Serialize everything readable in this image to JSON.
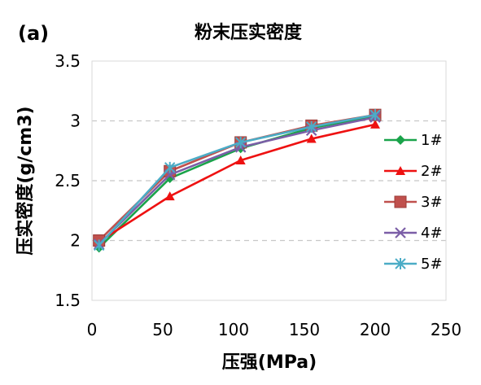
{
  "panel_label": "(a)",
  "chart_data": {
    "type": "line",
    "title": "粉末压实密度",
    "xlabel": "压强(MPa)",
    "ylabel": "压实密度(g/cm3)",
    "xlim": [
      0,
      250
    ],
    "ylim": [
      1.5,
      3.5
    ],
    "xticks": [
      0,
      50,
      100,
      150,
      200,
      250
    ],
    "yticks": [
      1.5,
      2,
      2.5,
      3,
      3.5
    ],
    "ytick_labels": [
      "1.5",
      "2",
      "2.5",
      "3",
      "3.5"
    ],
    "grid": "horizontal-dashed",
    "legend_position": "right",
    "x": [
      5,
      55,
      105,
      155,
      200
    ],
    "series": [
      {
        "name": "1#",
        "color": "#1aa34a",
        "marker": "diamond",
        "values": [
          1.94,
          2.52,
          2.77,
          2.94,
          3.04
        ]
      },
      {
        "name": "2#",
        "color": "#ee1111",
        "marker": "triangle",
        "values": [
          1.99,
          2.37,
          2.67,
          2.85,
          2.97
        ]
      },
      {
        "name": "3#",
        "color": "#c0504d",
        "marker": "square",
        "values": [
          2.0,
          2.58,
          2.82,
          2.96,
          3.05
        ]
      },
      {
        "name": "4#",
        "color": "#7b5ea7",
        "marker": "x",
        "values": [
          1.97,
          2.55,
          2.78,
          2.92,
          3.03
        ]
      },
      {
        "name": "5#",
        "color": "#4bacc6",
        "marker": "star",
        "values": [
          1.96,
          2.61,
          2.82,
          2.95,
          3.05
        ]
      }
    ]
  }
}
